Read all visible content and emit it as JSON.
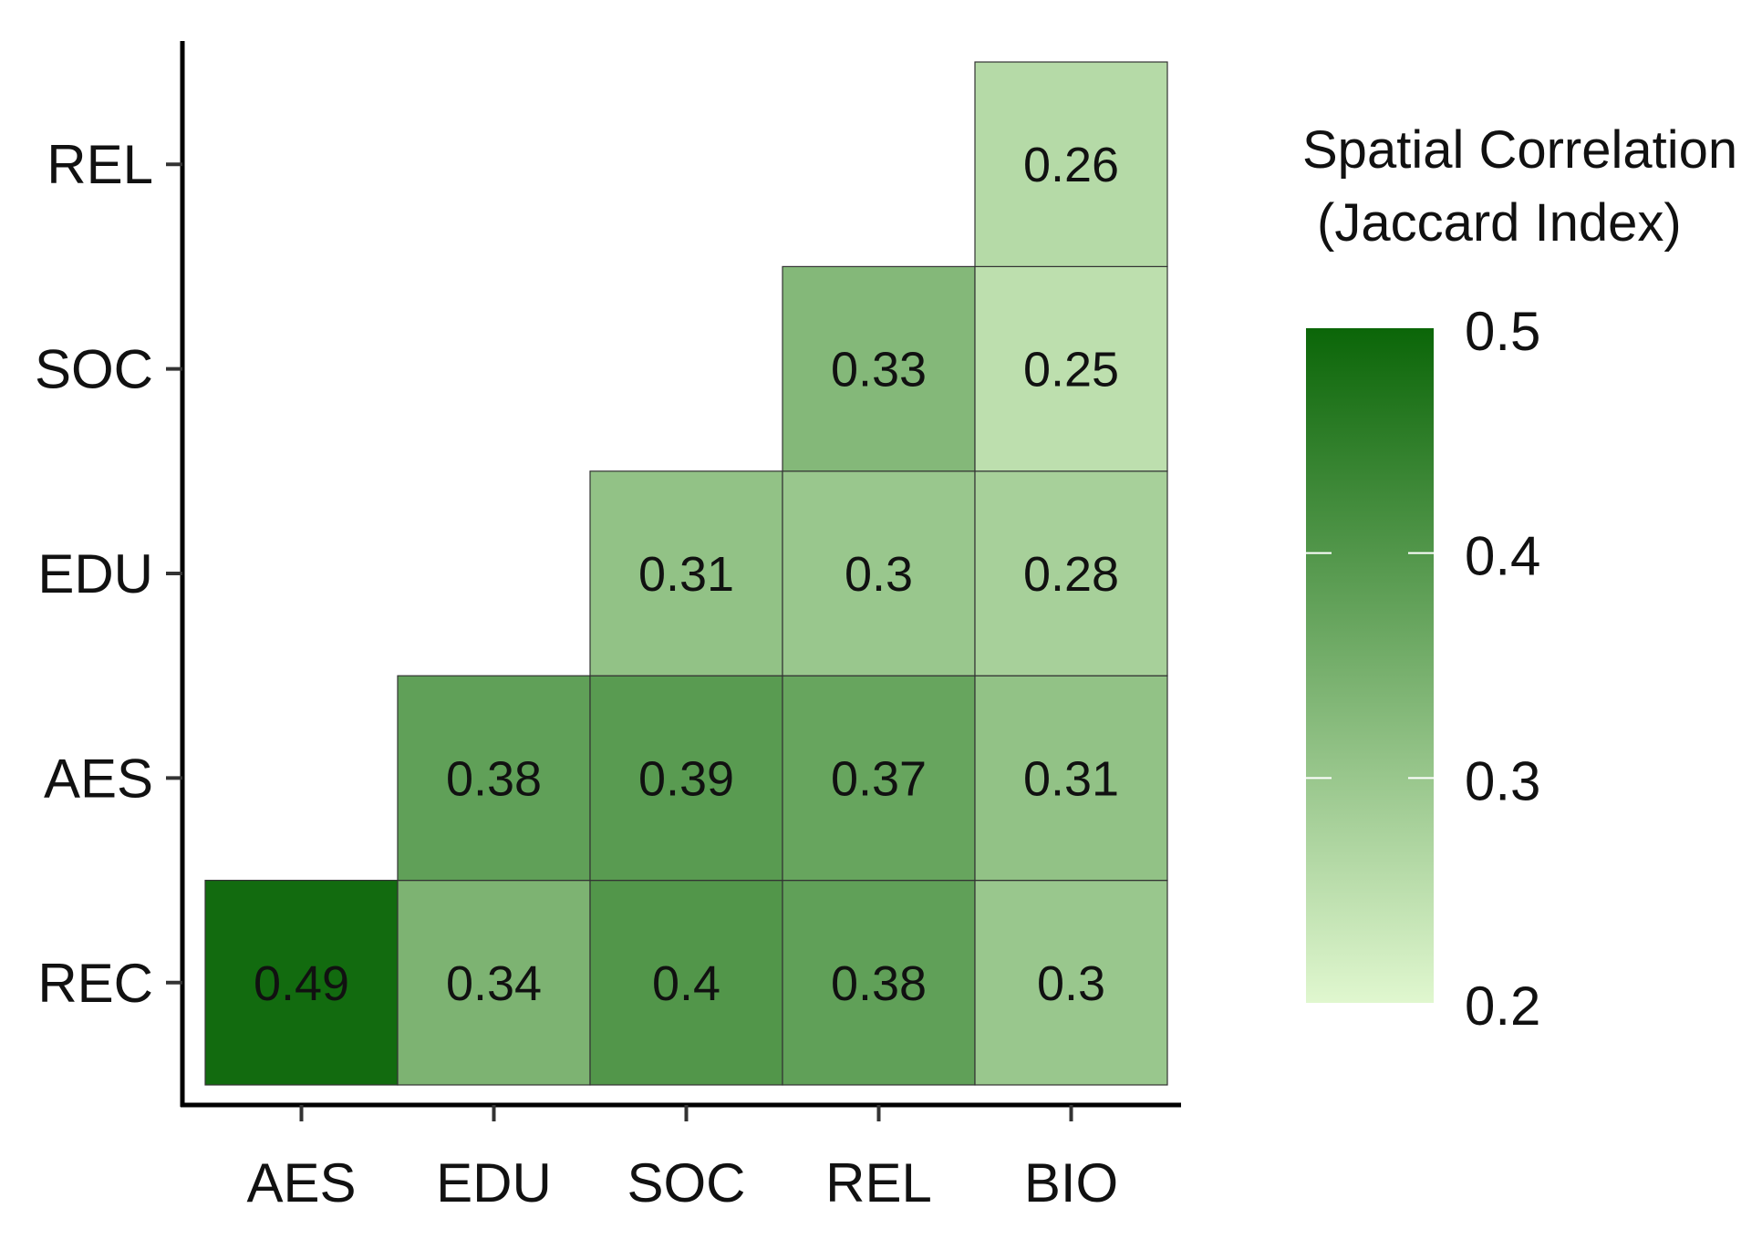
{
  "chart_data": {
    "type": "heatmap",
    "x_categories": [
      "AES",
      "EDU",
      "SOC",
      "REL",
      "BIO"
    ],
    "y_categories": [
      "REC",
      "AES",
      "EDU",
      "SOC",
      "REL"
    ],
    "cells": [
      {
        "x": "AES",
        "y": "REC",
        "value": 0.49,
        "label": "0.49"
      },
      {
        "x": "EDU",
        "y": "REC",
        "value": 0.34,
        "label": "0.34"
      },
      {
        "x": "SOC",
        "y": "REC",
        "value": 0.4,
        "label": "0.4"
      },
      {
        "x": "REL",
        "y": "REC",
        "value": 0.38,
        "label": "0.38"
      },
      {
        "x": "BIO",
        "y": "REC",
        "value": 0.3,
        "label": "0.3"
      },
      {
        "x": "EDU",
        "y": "AES",
        "value": 0.38,
        "label": "0.38"
      },
      {
        "x": "SOC",
        "y": "AES",
        "value": 0.39,
        "label": "0.39"
      },
      {
        "x": "REL",
        "y": "AES",
        "value": 0.37,
        "label": "0.37"
      },
      {
        "x": "BIO",
        "y": "AES",
        "value": 0.31,
        "label": "0.31"
      },
      {
        "x": "SOC",
        "y": "EDU",
        "value": 0.31,
        "label": "0.31"
      },
      {
        "x": "REL",
        "y": "EDU",
        "value": 0.3,
        "label": "0.3"
      },
      {
        "x": "BIO",
        "y": "EDU",
        "value": 0.28,
        "label": "0.28"
      },
      {
        "x": "REL",
        "y": "SOC",
        "value": 0.33,
        "label": "0.33"
      },
      {
        "x": "BIO",
        "y": "SOC",
        "value": 0.25,
        "label": "0.25"
      },
      {
        "x": "BIO",
        "y": "REL",
        "value": 0.26,
        "label": "0.26"
      }
    ],
    "legend": {
      "title_line1": "Spatial Correlation",
      "title_line2": "(Jaccard Index)",
      "min": 0.2,
      "max": 0.5,
      "ticks": [
        "0.2",
        "0.3",
        "0.4",
        "0.5"
      ],
      "low_color": "#e0f7cf",
      "high_color": "#0b6608",
      "placement": "right"
    },
    "title": "",
    "xlabel": "",
    "ylabel": ""
  }
}
